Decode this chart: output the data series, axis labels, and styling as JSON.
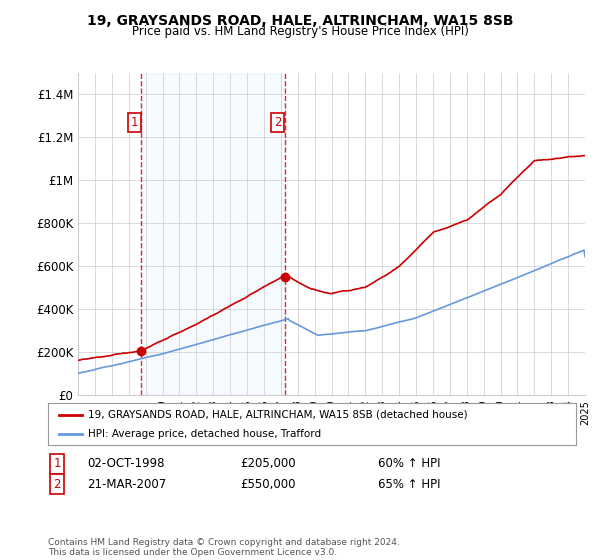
{
  "title": "19, GRAYSANDS ROAD, HALE, ALTRINCHAM, WA15 8SB",
  "subtitle": "Price paid vs. HM Land Registry's House Price Index (HPI)",
  "ylim": [
    0,
    1500000
  ],
  "yticks": [
    0,
    200000,
    400000,
    600000,
    800000,
    1000000,
    1200000,
    1400000
  ],
  "ytick_labels": [
    "£0",
    "£200K",
    "£400K",
    "£600K",
    "£800K",
    "£1M",
    "£1.2M",
    "£1.4M"
  ],
  "hpi_color": "#6699dd",
  "price_color": "#cc0000",
  "shade_color": "#ddeeff",
  "sale1_x": 1998.75,
  "sale1_y": 205000,
  "sale2_x": 2007.22,
  "sale2_y": 550000,
  "legend_line1": "19, GRAYSANDS ROAD, HALE, ALTRINCHAM, WA15 8SB (detached house)",
  "legend_line2": "HPI: Average price, detached house, Trafford",
  "table_row1": [
    "1",
    "02-OCT-1998",
    "£205,000",
    "60% ↑ HPI"
  ],
  "table_row2": [
    "2",
    "21-MAR-2007",
    "£550,000",
    "65% ↑ HPI"
  ],
  "footnote": "Contains HM Land Registry data © Crown copyright and database right 2024.\nThis data is licensed under the Open Government Licence v3.0.",
  "xmin": 1995,
  "xmax": 2025,
  "background_color": "#ffffff",
  "grid_color": "#cccccc"
}
